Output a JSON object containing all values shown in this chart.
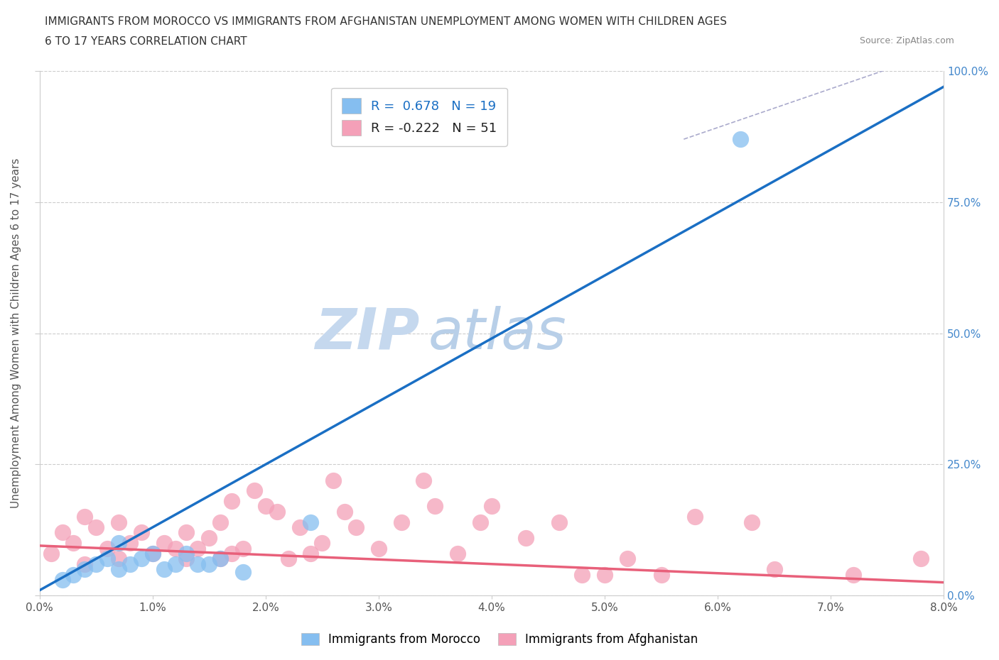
{
  "title_line1": "IMMIGRANTS FROM MOROCCO VS IMMIGRANTS FROM AFGHANISTAN UNEMPLOYMENT AMONG WOMEN WITH CHILDREN AGES",
  "title_line2": "6 TO 17 YEARS CORRELATION CHART",
  "source_text": "Source: ZipAtlas.com",
  "ylabel": "Unemployment Among Women with Children Ages 6 to 17 years",
  "xlim": [
    0.0,
    0.08
  ],
  "ylim": [
    0.0,
    1.0
  ],
  "xticks": [
    0.0,
    0.01,
    0.02,
    0.03,
    0.04,
    0.05,
    0.06,
    0.07,
    0.08
  ],
  "xticklabels": [
    "0.0%",
    "1.0%",
    "2.0%",
    "3.0%",
    "4.0%",
    "5.0%",
    "6.0%",
    "7.0%",
    "8.0%"
  ],
  "yticks": [
    0.0,
    0.25,
    0.5,
    0.75,
    1.0
  ],
  "right_yticklabels": [
    "0.0%",
    "25.0%",
    "50.0%",
    "75.0%",
    "100.0%"
  ],
  "morocco_color": "#85bef0",
  "afghanistan_color": "#f4a0b8",
  "morocco_line_color": "#1a6fc4",
  "afghanistan_line_color": "#e8607a",
  "morocco_R": 0.678,
  "morocco_N": 19,
  "afghanistan_R": -0.222,
  "afghanistan_N": 51,
  "background_color": "#ffffff",
  "grid_color": "#cccccc",
  "watermark_text_zip": "ZIP",
  "watermark_text_atlas": "atlas",
  "watermark_color_zip": "#c5d8ee",
  "watermark_color_atlas": "#b8cfe8",
  "morocco_scatter_x": [
    0.002,
    0.003,
    0.004,
    0.005,
    0.006,
    0.007,
    0.007,
    0.008,
    0.009,
    0.01,
    0.011,
    0.012,
    0.013,
    0.014,
    0.015,
    0.016,
    0.018,
    0.024,
    0.062
  ],
  "morocco_scatter_y": [
    0.03,
    0.04,
    0.05,
    0.06,
    0.07,
    0.05,
    0.1,
    0.06,
    0.07,
    0.08,
    0.05,
    0.06,
    0.08,
    0.06,
    0.06,
    0.07,
    0.045,
    0.14,
    0.87
  ],
  "afghanistan_scatter_x": [
    0.001,
    0.002,
    0.003,
    0.004,
    0.004,
    0.005,
    0.006,
    0.007,
    0.007,
    0.008,
    0.009,
    0.01,
    0.011,
    0.012,
    0.013,
    0.013,
    0.014,
    0.015,
    0.016,
    0.016,
    0.017,
    0.017,
    0.018,
    0.019,
    0.02,
    0.021,
    0.022,
    0.023,
    0.024,
    0.025,
    0.026,
    0.027,
    0.028,
    0.03,
    0.032,
    0.034,
    0.035,
    0.037,
    0.039,
    0.04,
    0.043,
    0.046,
    0.048,
    0.05,
    0.052,
    0.055,
    0.058,
    0.063,
    0.065,
    0.072,
    0.078
  ],
  "afghanistan_scatter_y": [
    0.08,
    0.12,
    0.1,
    0.15,
    0.06,
    0.13,
    0.09,
    0.14,
    0.07,
    0.1,
    0.12,
    0.08,
    0.1,
    0.09,
    0.07,
    0.12,
    0.09,
    0.11,
    0.07,
    0.14,
    0.18,
    0.08,
    0.09,
    0.2,
    0.17,
    0.16,
    0.07,
    0.13,
    0.08,
    0.1,
    0.22,
    0.16,
    0.13,
    0.09,
    0.14,
    0.22,
    0.17,
    0.08,
    0.14,
    0.17,
    0.11,
    0.14,
    0.04,
    0.04,
    0.07,
    0.04,
    0.15,
    0.14,
    0.05,
    0.04,
    0.07
  ],
  "morocco_line_x": [
    0.0,
    0.08
  ],
  "morocco_line_y": [
    0.01,
    0.97
  ],
  "afghanistan_line_x": [
    0.0,
    0.08
  ],
  "afghanistan_line_y": [
    0.095,
    0.025
  ],
  "dashed_line_x": [
    0.057,
    0.08
  ],
  "dashed_line_y": [
    0.87,
    1.04
  ],
  "dashed_line_color": "#aaaacc"
}
